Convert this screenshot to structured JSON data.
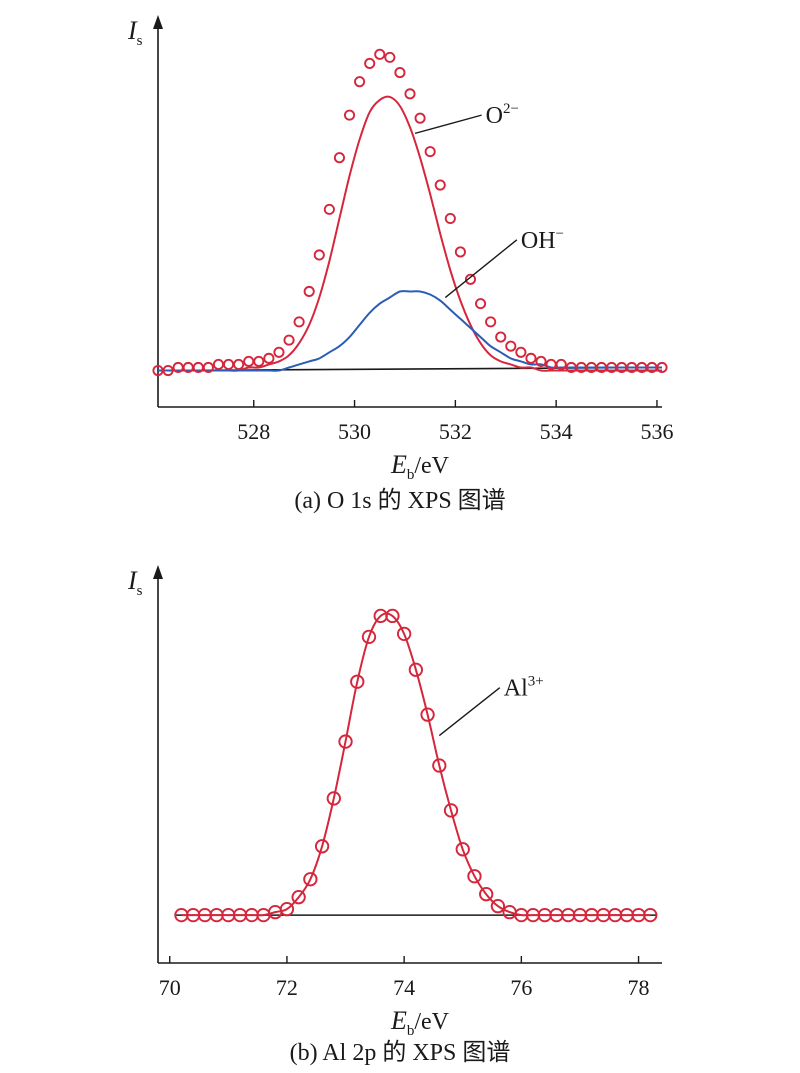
{
  "chart_data": [
    {
      "type": "line",
      "caption": "(a) O 1s 的 XPS 图谱",
      "ylabel": {
        "symbol": "I",
        "sub": "s"
      },
      "xlabel": {
        "symbol": "E",
        "sub": "b",
        "unit": "/eV"
      },
      "xlim": [
        526.1,
        536.1
      ],
      "ylim": [
        -0.12,
        1.12
      ],
      "xticks": [
        528,
        530,
        532,
        534,
        536
      ],
      "x_tick_labels": [
        "528",
        "530",
        "532",
        "534",
        "536"
      ],
      "baseline": [
        [
          526.1,
          0.0
        ],
        [
          536.1,
          0.01
        ]
      ],
      "series": [
        {
          "name": "",
          "style": "markers",
          "color": "#d6263c",
          "x": [
            526.1,
            526.3,
            526.5,
            526.7,
            526.9,
            527.1,
            527.3,
            527.5,
            527.7,
            527.9,
            528.1,
            528.3,
            528.5,
            528.7,
            528.9,
            529.1,
            529.3,
            529.5,
            529.7,
            529.9,
            530.1,
            530.3,
            530.5,
            530.7,
            530.9,
            531.1,
            531.3,
            531.5,
            531.7,
            531.9,
            532.1,
            532.3,
            532.5,
            532.7,
            532.9,
            533.1,
            533.3,
            533.5,
            533.7,
            533.9,
            534.1,
            534.3,
            534.5,
            534.7,
            534.9,
            535.1,
            535.3,
            535.5,
            535.7,
            535.9,
            536.1
          ],
          "y": [
            0.0,
            0.0,
            0.01,
            0.01,
            0.01,
            0.01,
            0.02,
            0.02,
            0.02,
            0.03,
            0.03,
            0.04,
            0.06,
            0.1,
            0.16,
            0.26,
            0.38,
            0.53,
            0.7,
            0.84,
            0.95,
            1.01,
            1.04,
            1.03,
            0.98,
            0.91,
            0.83,
            0.72,
            0.61,
            0.5,
            0.39,
            0.3,
            0.22,
            0.16,
            0.11,
            0.08,
            0.06,
            0.04,
            0.03,
            0.02,
            0.02,
            0.01,
            0.01,
            0.01,
            0.01,
            0.01,
            0.01,
            0.01,
            0.01,
            0.01,
            0.01
          ]
        },
        {
          "name": "O²⁻",
          "style": "line",
          "color": "#d6263c",
          "x": [
            526.1,
            526.3,
            526.5,
            526.7,
            526.9,
            527.1,
            527.3,
            527.5,
            527.7,
            527.9,
            528.1,
            528.3,
            528.5,
            528.7,
            528.9,
            529.1,
            529.3,
            529.5,
            529.7,
            529.9,
            530.1,
            530.3,
            530.5,
            530.7,
            530.9,
            531.1,
            531.3,
            531.5,
            531.7,
            531.9,
            532.1,
            532.3,
            532.5,
            532.7,
            532.9,
            533.1,
            533.3,
            533.5,
            533.7,
            533.9,
            534.1,
            534.3,
            534.5,
            534.7,
            534.9,
            535.1,
            535.3,
            535.5,
            535.7,
            535.9,
            536.1
          ],
          "y": [
            0.0,
            0.0,
            0.0,
            0.0,
            0.0,
            0.0,
            0.0,
            0.0,
            0.0,
            0.01,
            0.01,
            0.02,
            0.03,
            0.05,
            0.09,
            0.15,
            0.24,
            0.36,
            0.5,
            0.64,
            0.76,
            0.85,
            0.89,
            0.9,
            0.87,
            0.8,
            0.7,
            0.58,
            0.45,
            0.33,
            0.23,
            0.15,
            0.09,
            0.05,
            0.03,
            0.02,
            0.01,
            0.01,
            0.0,
            0.0,
            0.0,
            0.0,
            0.0,
            0.0,
            0.0,
            0.0,
            0.0,
            0.0,
            0.0,
            0.0,
            0.0
          ]
        },
        {
          "name": "OH⁻",
          "style": "line",
          "color": "#2b5db5",
          "x": [
            526.1,
            526.3,
            526.5,
            526.7,
            526.9,
            527.1,
            527.3,
            527.5,
            527.7,
            527.9,
            528.1,
            528.3,
            528.5,
            528.7,
            528.9,
            529.1,
            529.3,
            529.5,
            529.7,
            529.9,
            530.1,
            530.3,
            530.5,
            530.7,
            530.9,
            531.1,
            531.3,
            531.5,
            531.7,
            531.9,
            532.1,
            532.3,
            532.5,
            532.7,
            532.9,
            533.1,
            533.3,
            533.5,
            533.7,
            533.9,
            534.1,
            534.3,
            534.5,
            534.7,
            534.9,
            535.1,
            535.3,
            535.5,
            535.7,
            535.9,
            536.1
          ],
          "y": [
            0.0,
            0.0,
            0.0,
            0.0,
            0.0,
            0.0,
            0.0,
            0.0,
            0.0,
            0.0,
            0.0,
            0.0,
            0.0,
            0.01,
            0.02,
            0.03,
            0.04,
            0.06,
            0.08,
            0.11,
            0.15,
            0.19,
            0.22,
            0.24,
            0.26,
            0.26,
            0.26,
            0.25,
            0.23,
            0.2,
            0.17,
            0.14,
            0.11,
            0.08,
            0.06,
            0.04,
            0.03,
            0.02,
            0.02,
            0.01,
            0.01,
            0.01,
            0.01,
            0.01,
            0.01,
            0.01,
            0.01,
            0.01,
            0.01,
            0.01,
            0.01
          ]
        }
      ],
      "annotations": [
        {
          "text": "O",
          "sup": "2−",
          "at": [
            531.2,
            0.78
          ],
          "label_at": [
            532.6,
            0.84
          ]
        },
        {
          "text": "OH",
          "sup": "−",
          "at": [
            531.8,
            0.24
          ],
          "label_at": [
            533.3,
            0.43
          ]
        }
      ]
    },
    {
      "type": "line",
      "caption": "(b) Al 2p 的 XPS 图谱",
      "ylabel": {
        "symbol": "I",
        "sub": "s"
      },
      "xlabel": {
        "symbol": "E",
        "sub": "b",
        "unit": "/eV"
      },
      "xlim": [
        69.8,
        78.4
      ],
      "ylim": [
        -0.16,
        1.12
      ],
      "xticks": [
        70,
        72,
        74,
        76,
        78
      ],
      "x_tick_labels": [
        "70",
        "72",
        "74",
        "76",
        "78"
      ],
      "baseline": [
        [
          70.1,
          0.0
        ],
        [
          78.3,
          0.0
        ]
      ],
      "series": [
        {
          "name": "",
          "style": "markers",
          "color": "#d6263c",
          "x": [
            70.2,
            70.4,
            70.6,
            70.8,
            71.0,
            71.2,
            71.4,
            71.6,
            71.8,
            72.0,
            72.2,
            72.4,
            72.6,
            72.8,
            73.0,
            73.2,
            73.4,
            73.6,
            73.8,
            74.0,
            74.2,
            74.4,
            74.6,
            74.8,
            75.0,
            75.2,
            75.4,
            75.6,
            75.8,
            76.0,
            76.2,
            76.4,
            76.6,
            76.8,
            77.0,
            77.2,
            77.4,
            77.6,
            77.8,
            78.0,
            78.2
          ],
          "y": [
            0.0,
            0.0,
            0.0,
            0.0,
            0.0,
            0.0,
            0.0,
            0.0,
            0.01,
            0.02,
            0.06,
            0.12,
            0.23,
            0.39,
            0.58,
            0.78,
            0.93,
            1.0,
            1.0,
            0.94,
            0.82,
            0.67,
            0.5,
            0.35,
            0.22,
            0.13,
            0.07,
            0.03,
            0.01,
            0.0,
            0.0,
            0.0,
            0.0,
            0.0,
            0.0,
            0.0,
            0.0,
            0.0,
            0.0,
            0.0,
            0.0
          ]
        },
        {
          "name": "Al³⁺",
          "style": "line",
          "color": "#d6263c",
          "x": [
            70.2,
            70.4,
            70.6,
            70.8,
            71.0,
            71.2,
            71.4,
            71.6,
            71.8,
            72.0,
            72.2,
            72.4,
            72.6,
            72.8,
            73.0,
            73.2,
            73.4,
            73.6,
            73.8,
            74.0,
            74.2,
            74.4,
            74.6,
            74.8,
            75.0,
            75.2,
            75.4,
            75.6,
            75.8,
            76.0,
            76.2,
            76.4,
            76.6,
            76.8,
            77.0,
            77.2,
            77.4,
            77.6,
            77.8,
            78.0,
            78.2
          ],
          "y": [
            0.0,
            0.0,
            0.0,
            0.0,
            0.0,
            0.0,
            0.0,
            0.0,
            0.01,
            0.02,
            0.06,
            0.12,
            0.23,
            0.39,
            0.58,
            0.78,
            0.93,
            1.0,
            1.0,
            0.94,
            0.82,
            0.67,
            0.5,
            0.35,
            0.22,
            0.13,
            0.07,
            0.03,
            0.01,
            0.0,
            0.0,
            0.0,
            0.0,
            0.0,
            0.0,
            0.0,
            0.0,
            0.0,
            0.0,
            0.0,
            0.0
          ]
        }
      ],
      "annotations": [
        {
          "text": "Al",
          "sup": "3+",
          "at": [
            74.6,
            0.6
          ],
          "label_at": [
            75.7,
            0.76
          ]
        }
      ]
    }
  ]
}
